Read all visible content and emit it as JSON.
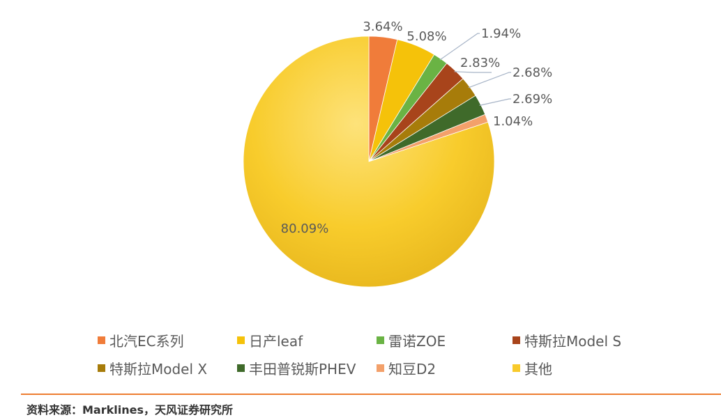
{
  "chart_data": {
    "type": "pie",
    "slices": [
      {
        "label": "北汽EC系列",
        "value": 3.64,
        "value_label": "3.64%",
        "color": "#f07c3a"
      },
      {
        "label": "日产leaf",
        "value": 5.08,
        "value_label": "5.08%",
        "color": "#f5c20a"
      },
      {
        "label": "雷诺ZOE",
        "value": 1.94,
        "value_label": "1.94%",
        "color": "#6ab344"
      },
      {
        "label": "特斯拉Model S",
        "value": 2.83,
        "value_label": "2.83%",
        "color": "#a8441b"
      },
      {
        "label": "特斯拉Model X",
        "value": 2.68,
        "value_label": "2.68%",
        "color": "#a77c0a"
      },
      {
        "label": "丰田普锐斯PHEV",
        "value": 2.69,
        "value_label": "2.69%",
        "color": "#3f6a2a"
      },
      {
        "label": "知豆D2",
        "value": 1.04,
        "value_label": "1.04%",
        "color": "#f3a06a"
      },
      {
        "label": "其他",
        "value": 80.09,
        "value_label": "80.09%",
        "color": "#f8ca2b"
      }
    ],
    "legend_position": "bottom"
  },
  "source": "资料来源：Marklines，天风证券研究所"
}
